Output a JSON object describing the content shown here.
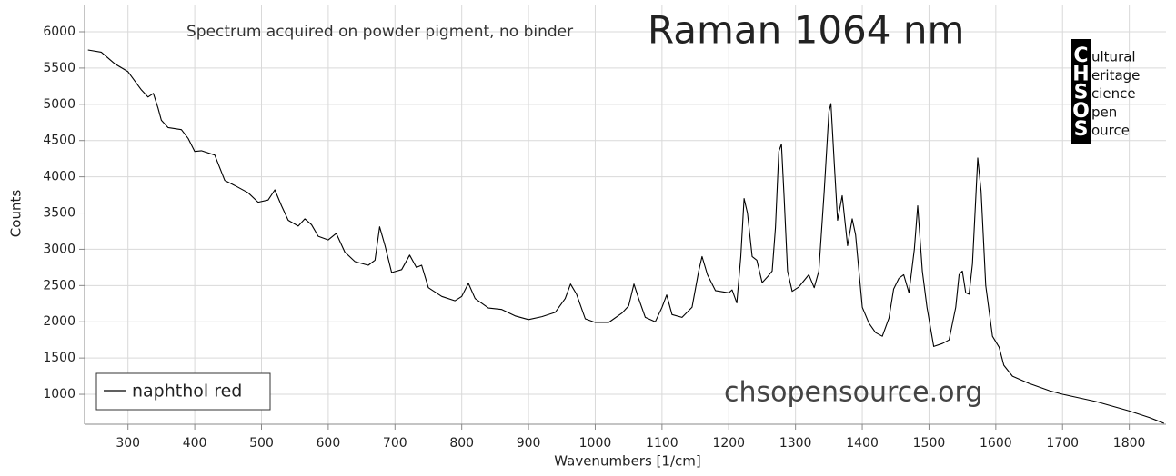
{
  "chart_data": {
    "type": "line",
    "title": "Raman 1064 nm",
    "subtitle": "Spectrum acquired on powder pigment, no binder",
    "watermark": "chsopensource.org",
    "logo": {
      "letters": [
        "C",
        "H",
        "S",
        "O",
        "S"
      ],
      "words": [
        "ultural",
        "eritage",
        "cience",
        "pen",
        "ource"
      ]
    },
    "x_label": "Wavenumbers [1/cm]",
    "y_label": "Counts",
    "xlim": [
      235,
      1855
    ],
    "ylim": [
      587,
      6376
    ],
    "xticks": [
      300,
      400,
      500,
      600,
      700,
      800,
      900,
      1000,
      1100,
      1200,
      1300,
      1400,
      1500,
      1600,
      1700,
      1800
    ],
    "yticks": [
      1000,
      1500,
      2000,
      2500,
      3000,
      3500,
      4000,
      4500,
      5000,
      5500,
      6000
    ],
    "grid": true,
    "legend": "lower left",
    "x": [
      240,
      260,
      280,
      300,
      320,
      330,
      338,
      345,
      350,
      360,
      380,
      390,
      400,
      410,
      430,
      445,
      460,
      480,
      495,
      510,
      520,
      530,
      540,
      555,
      565,
      575,
      585,
      600,
      612,
      625,
      640,
      660,
      670,
      677,
      685,
      695,
      710,
      722,
      732,
      740,
      750,
      770,
      790,
      800,
      810,
      820,
      840,
      860,
      880,
      900,
      920,
      940,
      955,
      963,
      972,
      985,
      1000,
      1020,
      1040,
      1050,
      1058,
      1065,
      1075,
      1090,
      1100,
      1107,
      1115,
      1130,
      1145,
      1155,
      1160,
      1168,
      1180,
      1200,
      1205,
      1212,
      1218,
      1223,
      1228,
      1235,
      1242,
      1250,
      1258,
      1265,
      1270,
      1275,
      1279,
      1283,
      1288,
      1295,
      1305,
      1320,
      1328,
      1335,
      1343,
      1350,
      1353,
      1358,
      1363,
      1370,
      1378,
      1385,
      1390,
      1400,
      1410,
      1420,
      1430,
      1440,
      1447,
      1455,
      1462,
      1470,
      1478,
      1483,
      1490,
      1497,
      1507,
      1520,
      1530,
      1540,
      1545,
      1550,
      1555,
      1560,
      1565,
      1570,
      1573,
      1578,
      1585,
      1595,
      1605,
      1612,
      1625,
      1650,
      1680,
      1700,
      1750,
      1800,
      1830,
      1852
    ],
    "series": [
      {
        "name": "naphthol red",
        "color": "#000000",
        "values": [
          5750,
          5720,
          5560,
          5450,
          5200,
          5100,
          5150,
          4950,
          4780,
          4680,
          4650,
          4530,
          4350,
          4360,
          4300,
          3950,
          3880,
          3780,
          3650,
          3680,
          3820,
          3600,
          3400,
          3320,
          3420,
          3340,
          3180,
          3130,
          3220,
          2960,
          2830,
          2780,
          2850,
          3310,
          3050,
          2680,
          2720,
          2920,
          2750,
          2780,
          2470,
          2350,
          2290,
          2350,
          2530,
          2320,
          2190,
          2170,
          2080,
          2030,
          2070,
          2130,
          2320,
          2520,
          2380,
          2040,
          1990,
          1990,
          2120,
          2220,
          2520,
          2320,
          2060,
          2000,
          2200,
          2370,
          2100,
          2060,
          2200,
          2700,
          2900,
          2650,
          2430,
          2400,
          2440,
          2260,
          2900,
          3700,
          3500,
          2900,
          2850,
          2540,
          2620,
          2700,
          3300,
          4350,
          4450,
          3700,
          2700,
          2420,
          2480,
          2650,
          2470,
          2700,
          3800,
          4900,
          5010,
          4200,
          3400,
          3740,
          3050,
          3420,
          3200,
          2200,
          1980,
          1850,
          1800,
          2050,
          2450,
          2600,
          2650,
          2400,
          3000,
          3600,
          2700,
          2200,
          1660,
          1700,
          1750,
          2200,
          2650,
          2700,
          2400,
          2380,
          2800,
          3700,
          4260,
          3800,
          2500,
          1800,
          1650,
          1400,
          1250,
          1150,
          1050,
          1000,
          900,
          770,
          680,
          600
        ]
      }
    ]
  }
}
